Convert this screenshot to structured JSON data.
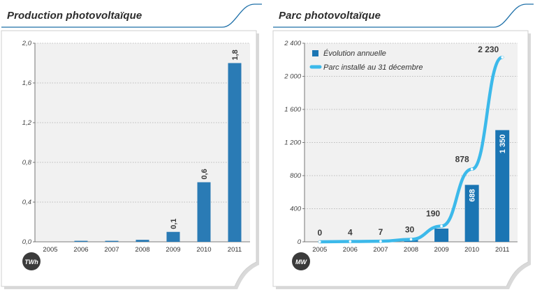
{
  "chart_data": [
    {
      "type": "bar",
      "title": "Production photovoltaïque",
      "unit_badge": "TWh",
      "categories": [
        "2005",
        "2006",
        "2007",
        "2008",
        "2009",
        "2010",
        "2011"
      ],
      "values": [
        0.0,
        0.01,
        0.01,
        0.02,
        0.1,
        0.6,
        1.8
      ],
      "data_labels": [
        "",
        "",
        "",
        "",
        "0,1",
        "0,6",
        "1,8"
      ],
      "y_ticks": [
        "0,0",
        "0,4",
        "0,8",
        "1,2",
        "1,6",
        "2,0"
      ],
      "ylim": [
        0,
        2.0
      ],
      "grid": "horizontal-dotted",
      "colors": {
        "bar": "#2a7bb5",
        "plot_bg": "#f1f1f1",
        "accent": "#1d6fa8"
      }
    },
    {
      "type": "bar+line",
      "title": "Parc photovoltaïque",
      "unit_badge": "MW",
      "categories": [
        "2005",
        "2006",
        "2007",
        "2008",
        "2009",
        "2010",
        "2011"
      ],
      "series": [
        {
          "name": "Évolution annuelle",
          "type": "bar",
          "values": [
            0,
            4,
            3,
            23,
            160,
            688,
            1350
          ],
          "data_labels": [
            "",
            "",
            "",
            "",
            "",
            "688",
            "1 350"
          ]
        },
        {
          "name": "Parc installé au 31 décembre",
          "type": "line",
          "values": [
            0,
            4,
            7,
            30,
            190,
            878,
            2230
          ],
          "data_labels": [
            "0",
            "4",
            "7",
            "30",
            "190",
            "878",
            "2 230"
          ]
        }
      ],
      "y_ticks": [
        "0",
        "400",
        "800",
        "1 200",
        "1 600",
        "2 000",
        "2 400"
      ],
      "ylim": [
        0,
        2400
      ],
      "legend": "top-left",
      "grid": "horizontal-dotted",
      "colors": {
        "bar": "#1b75b3",
        "line": "#3cb9ea",
        "plot_bg": "#f1f1f1",
        "accent": "#1d6fa8"
      }
    }
  ]
}
